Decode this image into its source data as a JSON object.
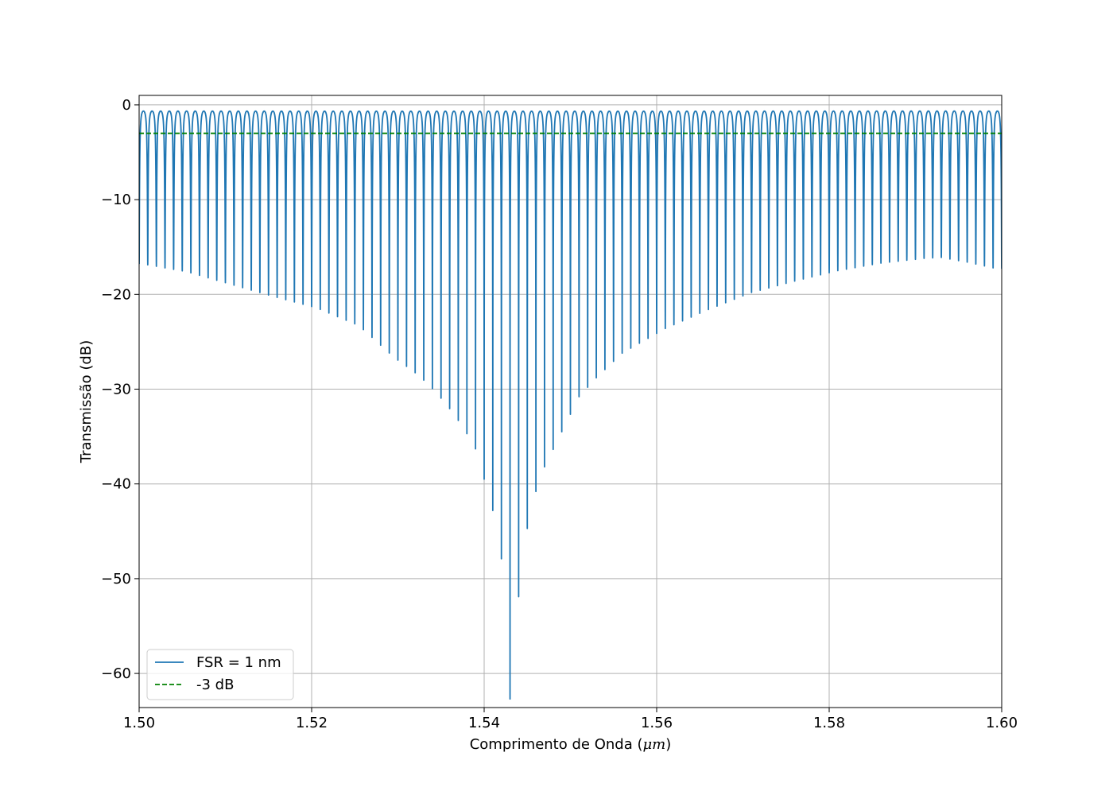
{
  "chart_data": {
    "type": "line",
    "title": "",
    "xlabel_prefix": "Comprimento de Onda (",
    "xlabel_unit": "μm",
    "xlabel_suffix": ")",
    "ylabel": "Transmissão (dB)",
    "xlim": [
      1.5,
      1.6
    ],
    "ylim": [
      -63.6,
      1.0
    ],
    "xticks": [
      1.5,
      1.52,
      1.54,
      1.56,
      1.58,
      1.6
    ],
    "xtick_labels": [
      "1.50",
      "1.52",
      "1.54",
      "1.56",
      "1.58",
      "1.60"
    ],
    "yticks": [
      0,
      -10,
      -20,
      -30,
      -40,
      -50,
      -60
    ],
    "ytick_labels": [
      "0",
      "−10",
      "−20",
      "−30",
      "−40",
      "−50",
      "−60"
    ],
    "grid": true,
    "legend": {
      "placement": "lower-left"
    },
    "series": [
      {
        "name": "FSR = 1 nm",
        "color": "#1f77b4",
        "style": "solid",
        "fsr_um": 0.001,
        "peak_db": 0,
        "deepest_notch": {
          "x": 1.543,
          "y": -62.7
        },
        "notch_minima": [
          {
            "x": 1.5005,
            "y": -16.8
          },
          {
            "x": 1.5055,
            "y": -17.6
          },
          {
            "x": 1.5105,
            "y": -18.9
          },
          {
            "x": 1.5155,
            "y": -20.2
          },
          {
            "x": 1.5205,
            "y": -21.4
          },
          {
            "x": 1.5255,
            "y": -23.3
          },
          {
            "x": 1.5295,
            "y": -26.6
          },
          {
            "x": 1.5325,
            "y": -28.6
          },
          {
            "x": 1.5345,
            "y": -30.4
          },
          {
            "x": 1.5365,
            "y": -32.6
          },
          {
            "x": 1.5385,
            "y": -35.4
          },
          {
            "x": 1.5395,
            "y": -37.2
          },
          {
            "x": 1.54,
            "y": -39.5
          },
          {
            "x": 1.541,
            "y": -42.8
          },
          {
            "x": 1.542,
            "y": -47.9
          },
          {
            "x": 1.543,
            "y": -62.7
          },
          {
            "x": 1.544,
            "y": -51.9
          },
          {
            "x": 1.545,
            "y": -44.7
          },
          {
            "x": 1.546,
            "y": -40.8
          },
          {
            "x": 1.547,
            "y": -38.2
          },
          {
            "x": 1.549,
            "y": -34.5
          },
          {
            "x": 1.551,
            "y": -30.8
          },
          {
            "x": 1.553,
            "y": -28.8
          },
          {
            "x": 1.556,
            "y": -26.2
          },
          {
            "x": 1.561,
            "y": -23.6
          },
          {
            "x": 1.566,
            "y": -21.6
          },
          {
            "x": 1.571,
            "y": -19.8
          },
          {
            "x": 1.576,
            "y": -18.6
          },
          {
            "x": 1.581,
            "y": -17.5
          },
          {
            "x": 1.586,
            "y": -16.7
          },
          {
            "x": 1.591,
            "y": -16.2
          },
          {
            "x": 1.593,
            "y": -16.1
          },
          {
            "x": 1.596,
            "y": -16.6
          },
          {
            "x": 1.5995,
            "y": -17.3
          }
        ]
      },
      {
        "name": "-3 dB",
        "color": "#008000",
        "style": "dashed",
        "y": -3
      }
    ]
  }
}
